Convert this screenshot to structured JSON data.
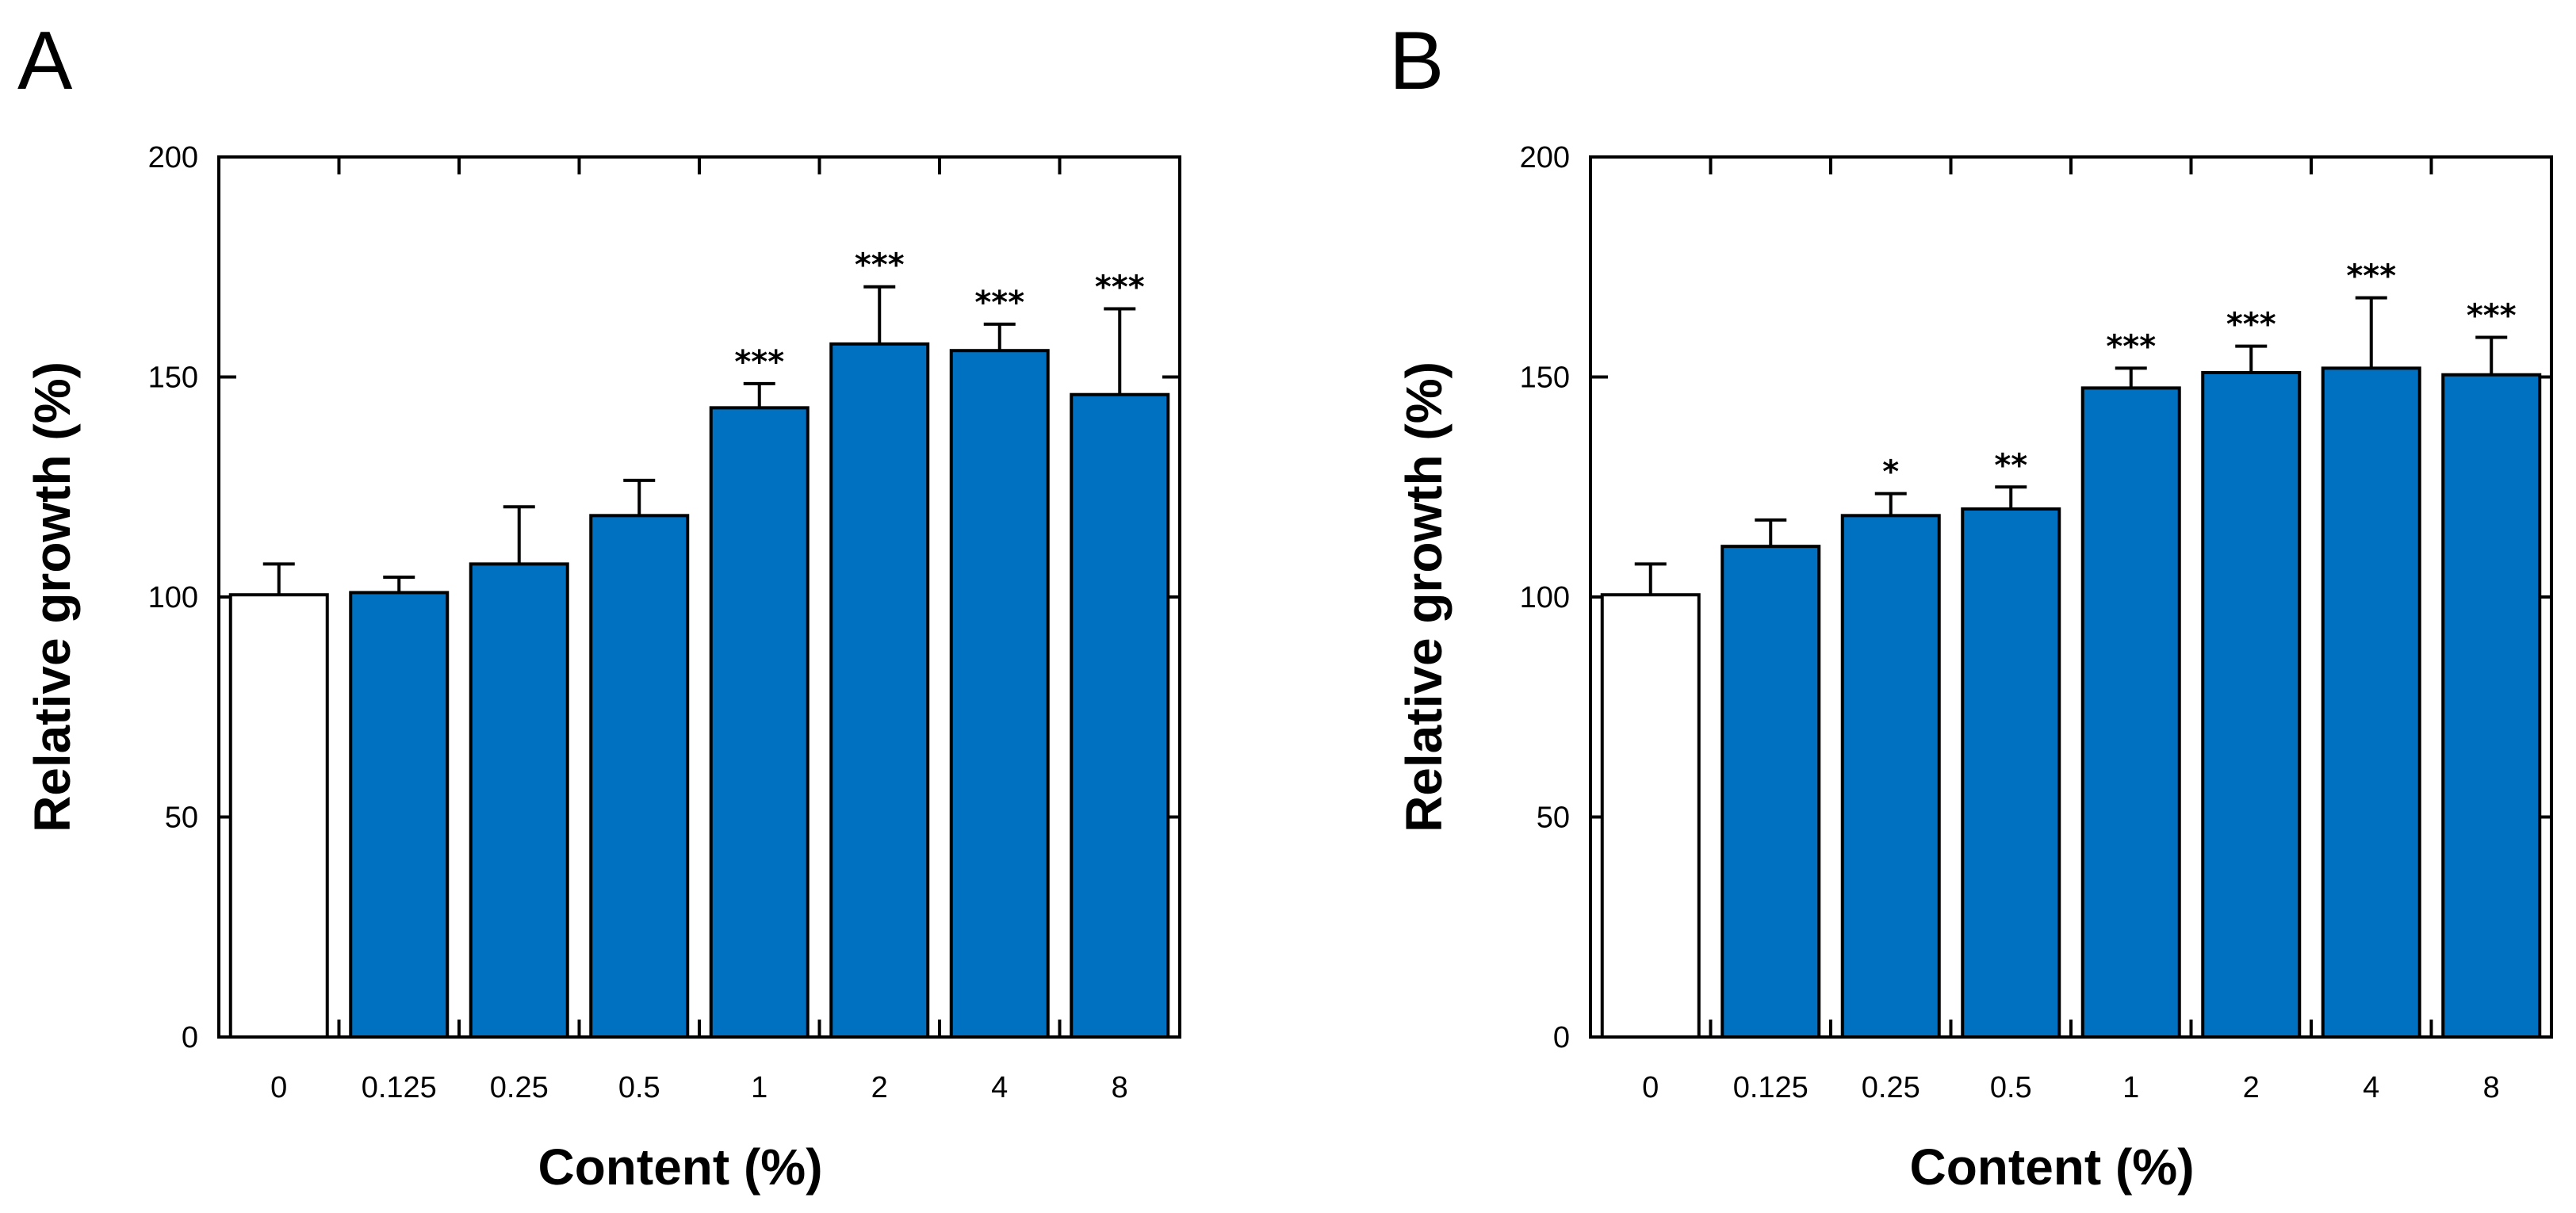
{
  "colors": {
    "bar_fill": "#0070C0",
    "control_fill": "#FFFFFF",
    "stroke": "#000000"
  },
  "chart_data": [
    {
      "panel": "A",
      "type": "bar",
      "xlabel": "Content (%)",
      "ylabel": "Relative growth (%)",
      "ylim": [
        0,
        200
      ],
      "yticks": [
        0,
        50,
        100,
        150,
        200
      ],
      "grid": false,
      "categories": [
        "0",
        "0.125",
        "0.25",
        "0.5",
        "1",
        "2",
        "4",
        "8"
      ],
      "values": [
        100.5,
        101,
        107.5,
        118.5,
        143,
        157.5,
        156,
        146
      ],
      "errors": [
        7,
        3.5,
        13,
        8,
        5.5,
        13,
        6,
        19.5
      ],
      "significance": [
        "",
        "",
        "",
        "",
        "***",
        "***",
        "***",
        "***"
      ]
    },
    {
      "panel": "B",
      "type": "bar",
      "xlabel": "Content (%)",
      "ylabel": "Relative growth (%)",
      "ylim": [
        0,
        200
      ],
      "yticks": [
        0,
        50,
        100,
        150,
        200
      ],
      "grid": false,
      "categories": [
        "0",
        "0.125",
        "0.25",
        "0.5",
        "1",
        "2",
        "4",
        "8"
      ],
      "values": [
        100.5,
        111.5,
        118.5,
        120,
        147.5,
        151,
        152,
        150.5
      ],
      "errors": [
        7,
        6,
        5,
        5,
        4.5,
        6,
        16,
        8.5
      ],
      "significance": [
        "",
        "",
        "*",
        "**",
        "***",
        "***",
        "***",
        "***"
      ]
    }
  ]
}
